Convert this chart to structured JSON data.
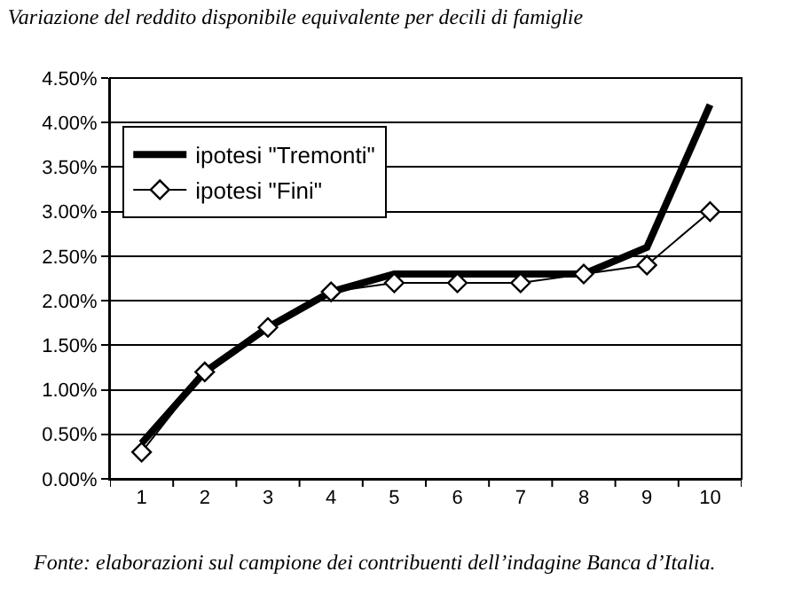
{
  "chart_data": {
    "type": "line",
    "title": "Variazione del reddito disponibile equivalente per decili di famiglie",
    "categories": [
      "1",
      "2",
      "3",
      "4",
      "5",
      "6",
      "7",
      "8",
      "9",
      "10"
    ],
    "series": [
      {
        "name": "ipotesi \"Tremonti\"",
        "color": "#000000",
        "marker": "none",
        "values": [
          0.4,
          1.2,
          1.7,
          2.1,
          2.3,
          2.3,
          2.3,
          2.3,
          2.6,
          4.2
        ]
      },
      {
        "name": "ipotesi \"Fini\"",
        "color": "#000000",
        "marker": "diamond",
        "values": [
          0.3,
          1.2,
          1.7,
          2.1,
          2.2,
          2.2,
          2.2,
          2.3,
          2.4,
          3.0
        ]
      }
    ],
    "ylim": [
      0,
      4.5
    ],
    "yticks": [
      {
        "value": 0,
        "label": "0.00%"
      },
      {
        "value": 0.5,
        "label": "0.50%"
      },
      {
        "value": 1,
        "label": "1.00%"
      },
      {
        "value": 1.5,
        "label": "1.50%"
      },
      {
        "value": 2,
        "label": "2.00%"
      },
      {
        "value": 2.5,
        "label": "2.50%"
      },
      {
        "value": 3,
        "label": "3.00%"
      },
      {
        "value": 3.5,
        "label": "3.50%"
      },
      {
        "value": 4,
        "label": "4.00%"
      },
      {
        "value": 4.5,
        "label": "4.50%"
      }
    ],
    "grid": "y",
    "legend": "top left",
    "line_style": "solid",
    "annotations": [
      "Fonte: elaborazioni sul campione dei contribuenti dell’indagine Banca d’Italia."
    ]
  }
}
